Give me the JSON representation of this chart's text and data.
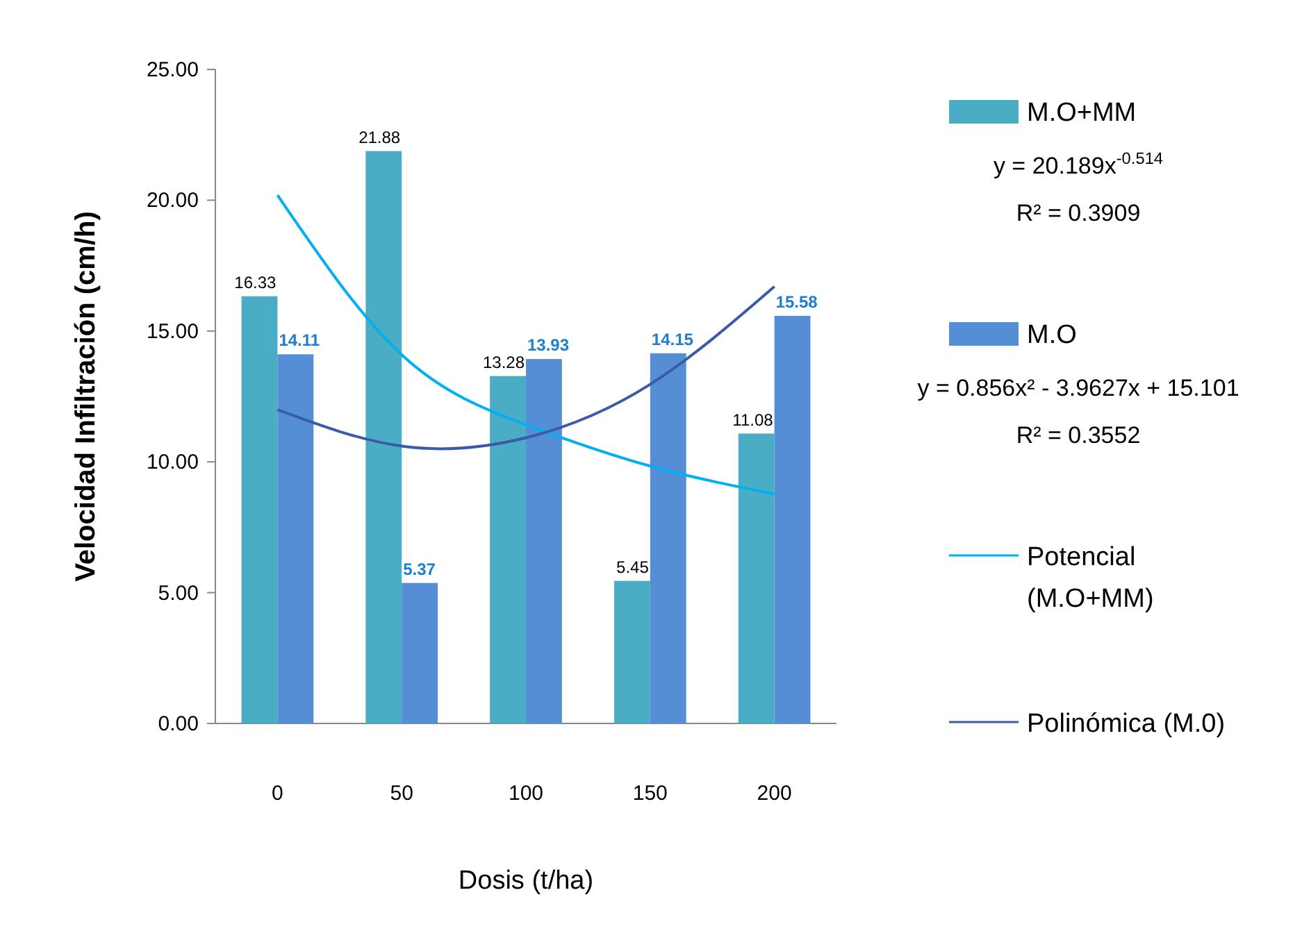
{
  "chart_data": {
    "type": "bar",
    "xlabel": "Dosis (t/ha)",
    "ylabel": "Velocidad Infiltración (cm/h)",
    "categories": [
      "0",
      "50",
      "100",
      "150",
      "200"
    ],
    "series": [
      {
        "name": "M.O+MM",
        "color": "#4bacc6",
        "values": [
          16.33,
          21.88,
          13.28,
          5.45,
          11.08
        ],
        "value_labels": [
          "16.33",
          "21.88",
          "13.28",
          "5.45",
          "11.08"
        ]
      },
      {
        "name": "M.O",
        "color": "#558ed5",
        "values": [
          14.11,
          5.37,
          13.93,
          14.15,
          15.58
        ],
        "value_labels": [
          "14.11",
          "5.37",
          "13.93",
          "14.15",
          "15.58"
        ]
      },
      {
        "name": "Potencial (M.O+MM)",
        "type": "line",
        "color": "#00b0f0",
        "values": [
          20.19,
          14.09,
          11.42,
          9.84,
          8.77
        ]
      },
      {
        "name": "Polinómica (M.0)",
        "type": "line",
        "color": "#3a5ca6",
        "values": [
          11.99,
          10.6,
          10.92,
          12.96,
          16.7
        ]
      }
    ],
    "ylim": [
      0,
      25
    ],
    "yticks": [
      {
        "value": 0,
        "label": "0.00"
      },
      {
        "value": 5,
        "label": "5.00"
      },
      {
        "value": 10,
        "label": "10.00"
      },
      {
        "value": 15,
        "label": "15.00"
      },
      {
        "value": 20,
        "label": "20.00"
      },
      {
        "value": 25,
        "label": "25.00"
      }
    ],
    "grid": false,
    "legend": "right",
    "annotations": [
      "y = 20.189x$^{-0.514}$",
      "R² = 0.3909",
      "y = 0.856x² - 3.9627x + 15.101",
      "R² = 0.3552"
    ]
  }
}
